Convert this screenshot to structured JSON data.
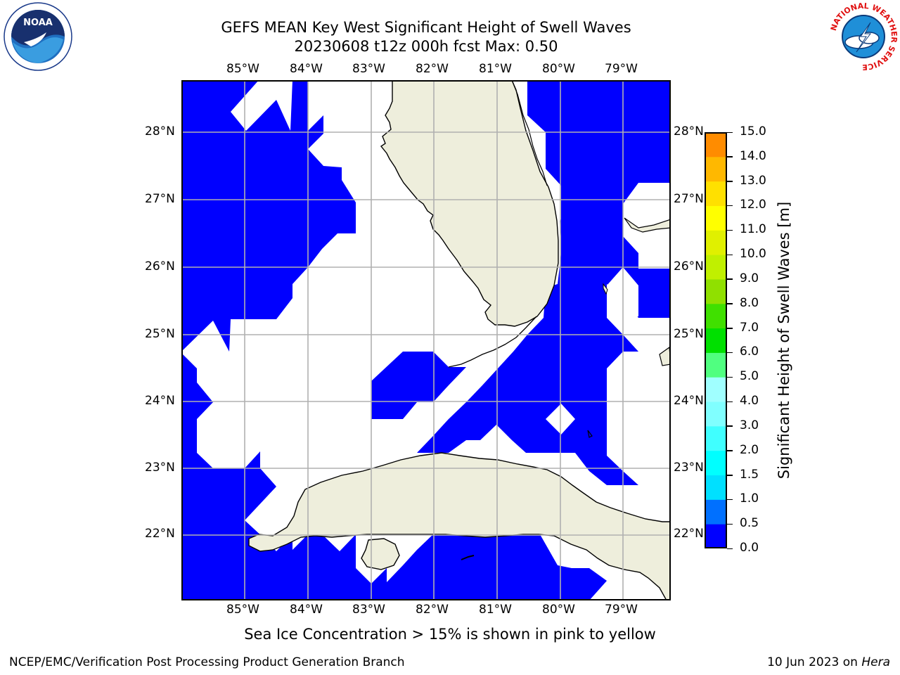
{
  "title_line1": "GEFS MEAN Key West Significant Height of Swell Waves",
  "title_line2": "20230608 t12z 000h fcst   Max: 0.50",
  "lon_labels": [
    "85°W",
    "84°W",
    "83°W",
    "82°W",
    "81°W",
    "80°W",
    "79°W"
  ],
  "lat_labels": [
    "28°N",
    "27°N",
    "26°N",
    "25°N",
    "24°N",
    "23°N",
    "22°N"
  ],
  "colorbar": {
    "label": "Significant Height of Swell Waves [m]",
    "ticks": [
      "15.0",
      "14.0",
      "13.0",
      "12.0",
      "11.0",
      "10.0",
      "9.0",
      "8.0",
      "7.0",
      "6.0",
      "5.0",
      "4.0",
      "3.0",
      "2.0",
      "1.5",
      "1.0",
      "0.5",
      "0.0"
    ],
    "colors": [
      "#0000ff",
      "#0070ff",
      "#00e0ff",
      "#00ffff",
      "#40ffff",
      "#80ffff",
      "#a0ffff",
      "#50ff80",
      "#00e000",
      "#40e000",
      "#90e000",
      "#c0f000",
      "#e0f000",
      "#ffff00",
      "#ffe000",
      "#ffb800",
      "#ff8c00",
      "#ff6000",
      "#ff3000",
      "#ff0000"
    ]
  },
  "colors": {
    "ocean_wave": "#0000ff",
    "land": "#eeeedc",
    "grid": "#b0b0b0"
  },
  "note": "Sea Ice Concentration > 15% is shown in pink to yellow",
  "footer_left": "NCEP/EMC/Verification Post Processing Product Generation Branch",
  "footer_right_prefix": "10 Jun 2023 on ",
  "footer_right_host": "Hera",
  "logos": {
    "noaa_text": "NOAA",
    "nws_text": "NATIONAL WEATHER SERVICE"
  }
}
